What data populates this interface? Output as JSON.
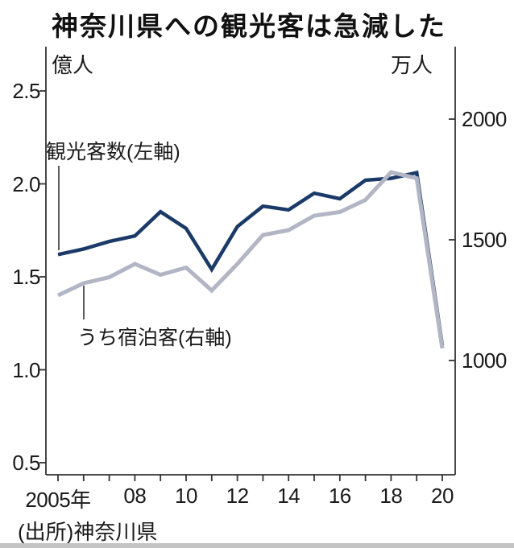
{
  "title": "神奈川県への観光客は急減した",
  "source": "(出所)神奈川県",
  "left_axis": {
    "unit": "億人",
    "tick_labels": [
      "2.5",
      "2.0",
      "1.5",
      "1.0",
      "0.5"
    ],
    "tick_values": [
      2.5,
      2.0,
      1.5,
      1.0,
      0.5
    ]
  },
  "right_axis": {
    "unit": "万人",
    "tick_labels": [
      "2000",
      "1500",
      "1000"
    ],
    "tick_values": [
      2000,
      1500,
      1000
    ]
  },
  "x_axis": {
    "tick_years": [
      2005,
      2006,
      2007,
      2008,
      2009,
      2010,
      2011,
      2012,
      2013,
      2014,
      2015,
      2016,
      2017,
      2018,
      2019,
      2020
    ],
    "label_years": [
      2005,
      2008,
      2010,
      2012,
      2014,
      2016,
      2018,
      2020
    ],
    "labels": [
      "2005年",
      "08",
      "10",
      "12",
      "14",
      "16",
      "18",
      "20"
    ]
  },
  "series_labels": {
    "visitors": "観光客数(左軸)",
    "overnight": "うち宿泊客(右軸)"
  },
  "colors": {
    "visitors": "#1b3a68",
    "overnight": "#b2b6c4",
    "axis": "#333333",
    "text": "#1a1a1a",
    "bottom_strip": "#c4c4c4"
  },
  "chart_data": {
    "type": "line",
    "title": "神奈川県への観光客は急減した",
    "x": [
      2005,
      2006,
      2007,
      2008,
      2009,
      2010,
      2011,
      2012,
      2013,
      2014,
      2015,
      2016,
      2017,
      2018,
      2019,
      2020
    ],
    "series": [
      {
        "name": "観光客数(左軸)",
        "axis": "left",
        "unit": "億人",
        "values": [
          1.62,
          1.65,
          1.69,
          1.72,
          1.85,
          1.76,
          1.54,
          1.77,
          1.88,
          1.86,
          1.95,
          1.92,
          2.02,
          2.03,
          2.06,
          1.13
        ]
      },
      {
        "name": "うち宿泊客(右軸)",
        "axis": "right",
        "unit": "万人",
        "values": [
          1270,
          1320,
          1345,
          1400,
          1355,
          1385,
          1290,
          1400,
          1520,
          1540,
          1600,
          1615,
          1665,
          1780,
          1755,
          1050
        ]
      }
    ],
    "left_ylim": [
      0.44,
      2.75
    ],
    "right_ylim": [
      520,
      2320
    ],
    "grid": false,
    "legend_position": "inline-annotations"
  }
}
